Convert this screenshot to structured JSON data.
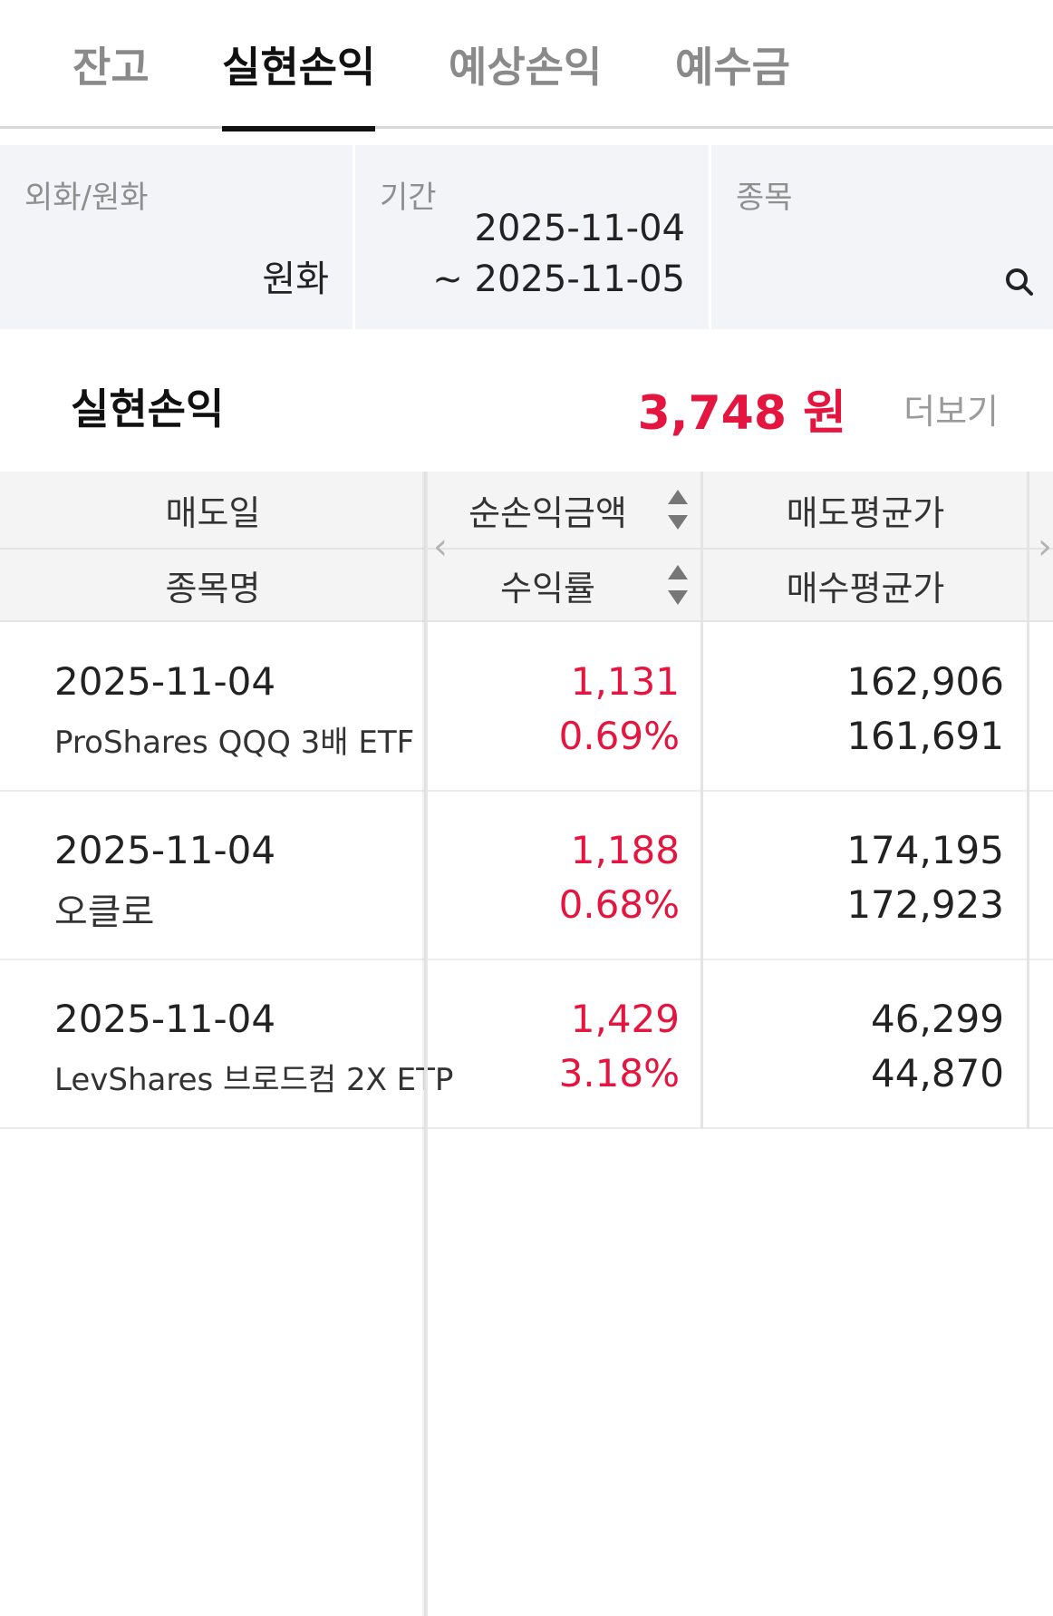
{
  "tabs": [
    {
      "label": "잔고",
      "active": false
    },
    {
      "label": "실현손익",
      "active": true
    },
    {
      "label": "예상손익",
      "active": false
    },
    {
      "label": "예수금",
      "active": false
    }
  ],
  "filters": {
    "currency": {
      "label": "외화/원화",
      "value": "원화"
    },
    "period": {
      "label": "기간",
      "from": "2025-11-04",
      "to": "~ 2025-11-05"
    },
    "stock": {
      "label": "종목",
      "icon": "search-icon"
    }
  },
  "summary": {
    "title": "실현손익",
    "amount": "3,748 원",
    "more": "더보기"
  },
  "table": {
    "headers": {
      "sell_date": "매도일",
      "stock_name": "종목명",
      "net_pnl": "순손익금액",
      "return_rate": "수익률",
      "sell_avg": "매도평균가",
      "buy_avg": "매수평균가"
    },
    "rows": [
      {
        "date": "2025-11-04",
        "name": "ProShares QQQ 3배 ETF",
        "pnl": "1,131",
        "rate": "0.69%",
        "sell_avg": "162,906",
        "buy_avg": "161,691"
      },
      {
        "date": "2025-11-04",
        "name": "오클로",
        "pnl": "1,188",
        "rate": "0.68%",
        "sell_avg": "174,195",
        "buy_avg": "172,923"
      },
      {
        "date": "2025-11-04",
        "name": "LevShares 브로드컴 2X ETP",
        "pnl": "1,429",
        "rate": "3.18%",
        "sell_avg": "46,299",
        "buy_avg": "44,870"
      }
    ]
  },
  "colors": {
    "accent_red": "#e4163f",
    "tab_active": "#111111",
    "tab_inactive": "#8a8a8a",
    "filter_bg": "#f3f4f7"
  }
}
